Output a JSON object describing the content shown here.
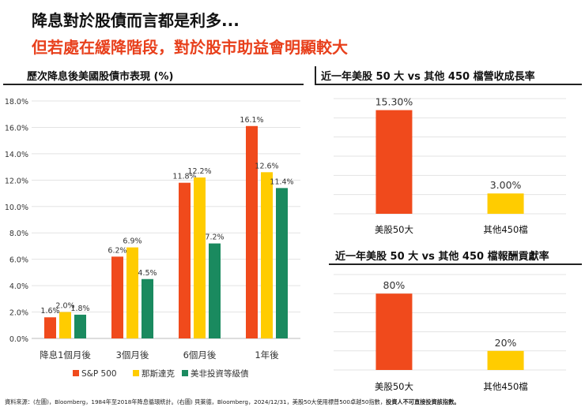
{
  "header": {
    "title_line1": "降息對於股債而言都是利多...",
    "title_line2": "但若處在緩降階段，對於股市助益會明顯較大"
  },
  "footer": {
    "source": "資料來源：(左圖)，Bloomberg，1984年至2018年降息循環統計。(右圖) 貝萊德，Bloomberg，2024/12/31，美股50大使用標普500卓越50指數，",
    "disclaimer": "投資人不可直接投資該指數。"
  },
  "colors": {
    "sp500": "#f04a1c",
    "nasdaq": "#ffcc00",
    "ig": "#1a8a5f",
    "title_red": "#e8401c"
  },
  "chart_data": [
    {
      "type": "bar",
      "title": "歷次降息後美國股債市表現 (%)",
      "categories": [
        "降息1個月後",
        "3個月後",
        "6個月後",
        "1年後"
      ],
      "series": [
        {
          "name": "S&P 500",
          "values": [
            1.6,
            6.2,
            11.8,
            16.1
          ],
          "labels": [
            "1.6%",
            "6.2%",
            "11.8%",
            "16.1%"
          ]
        },
        {
          "name": "那斯達克",
          "values": [
            2.0,
            6.9,
            12.2,
            12.6
          ],
          "labels": [
            "2.0%",
            "6.9%",
            "12.2%",
            "12.6%"
          ]
        },
        {
          "name": "美非投資等級債",
          "values": [
            1.8,
            4.5,
            7.2,
            11.4
          ],
          "labels": [
            "1.8%",
            "4.5%",
            "7.2%",
            "11.4%"
          ]
        }
      ],
      "yticks": [
        "0.0%",
        "2.0%",
        "4.0%",
        "6.0%",
        "8.0%",
        "10.0%",
        "12.0%",
        "14.0%",
        "16.0%",
        "18.0%"
      ],
      "ylim": [
        0,
        18
      ],
      "grid": true,
      "legend": "bottom"
    },
    {
      "type": "bar",
      "title": "近一年美股 50 大 vs 其他 450 檔營收成長率",
      "categories": [
        "美股50大",
        "其他450檔"
      ],
      "values": [
        15.3,
        3.0
      ],
      "labels": [
        "15.30%",
        "3.00%"
      ],
      "ylim": [
        0,
        17
      ],
      "grid": true
    },
    {
      "type": "bar",
      "title": "近一年美股 50 大 vs 其他 450 檔報酬貢獻率",
      "categories": [
        "美股50大",
        "其他450檔"
      ],
      "values": [
        80,
        20
      ],
      "labels": [
        "80%",
        "20%"
      ],
      "ylim": [
        0,
        100
      ],
      "grid": true
    }
  ]
}
